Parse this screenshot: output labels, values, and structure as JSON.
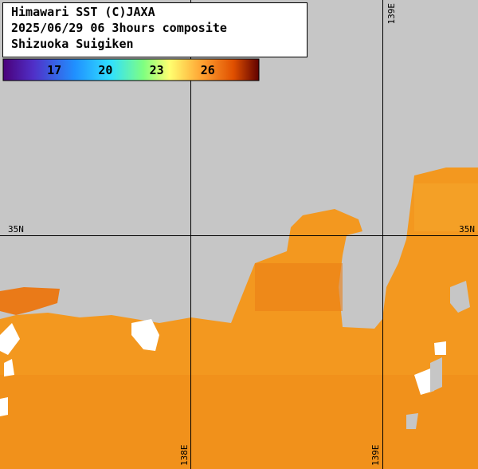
{
  "header": {
    "lines": [
      "Himawari SST (C)JAXA",
      "2025/06/29 06 3hours composite",
      "Shizuoka Suigiken"
    ]
  },
  "colorbar": {
    "lim": [
      14,
      29
    ],
    "ticks": [
      17,
      20,
      23,
      26
    ]
  },
  "grid": {
    "lon_top": "139E",
    "lat_left": "35N",
    "lat_right": "35N",
    "lon_bottom_1": "138E",
    "lon_bottom_2": "139E"
  }
}
